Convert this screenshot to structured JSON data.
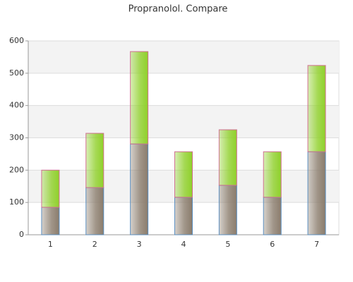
{
  "chart_data": {
    "type": "stacked-bar",
    "title": "Propranolol. Compare",
    "categories": [
      "1",
      "2",
      "3",
      "4",
      "5",
      "6",
      "7"
    ],
    "series": [
      {
        "color": "#8a7c6c",
        "values": [
          85,
          146,
          281,
          116,
          153,
          116,
          257
        ]
      },
      {
        "color": "#8fd02a",
        "values": [
          115,
          168,
          286,
          141,
          172,
          141,
          267
        ]
      }
    ],
    "ylim": [
      0,
      600
    ],
    "yticks": [
      0,
      100,
      200,
      300,
      400,
      500,
      600
    ],
    "grid": true
  }
}
